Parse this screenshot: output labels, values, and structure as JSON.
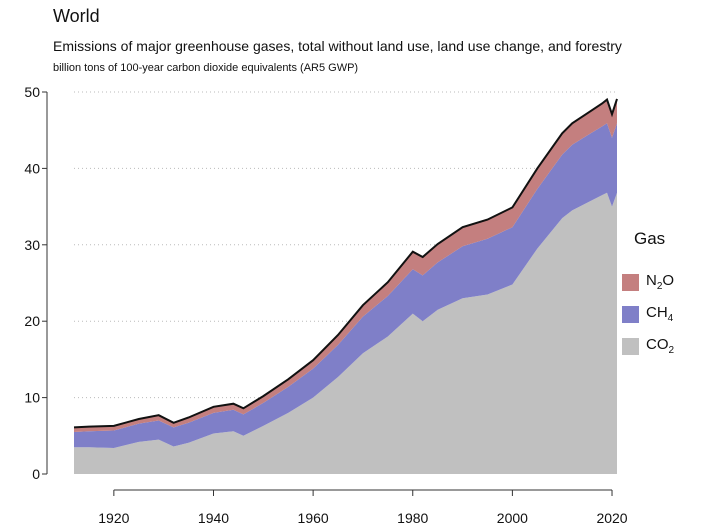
{
  "title": "World",
  "subtitle": "Emissions of major greenhouse gases, total without land use, land use change, and forestry",
  "units": "billion tons of 100-year carbon dioxide equivalents (AR5 GWP)",
  "legend": {
    "title": "Gas",
    "items": [
      {
        "label": "N",
        "sub": "2",
        "suffix": "O",
        "color": "#c47f7f"
      },
      {
        "label": "CH",
        "sub": "4",
        "suffix": "",
        "color": "#7f7fc8"
      },
      {
        "label": "CO",
        "sub": "2",
        "suffix": "",
        "color": "#c0c0c0"
      }
    ]
  },
  "chart_data": {
    "type": "area",
    "stacked": true,
    "xlim": [
      1912,
      2021
    ],
    "ylim": [
      0,
      50
    ],
    "x_ticks": [
      1920,
      1940,
      1960,
      1980,
      2000,
      2020
    ],
    "y_ticks": [
      0,
      10,
      20,
      30,
      40,
      50
    ],
    "grid": "horizontal dotted",
    "legend_position": "right",
    "x": [
      1912,
      1915,
      1920,
      1925,
      1929,
      1932,
      1935,
      1940,
      1944,
      1946,
      1950,
      1955,
      1960,
      1965,
      1970,
      1975,
      1980,
      1982,
      1985,
      1990,
      1995,
      2000,
      2005,
      2010,
      2012,
      2015,
      2018,
      2019,
      2020,
      2021
    ],
    "series": [
      {
        "name": "CO2",
        "color": "#c0c0c0",
        "values": [
          3.5,
          3.5,
          3.4,
          4.2,
          4.5,
          3.6,
          4.1,
          5.3,
          5.6,
          5.0,
          6.3,
          8.0,
          10.0,
          12.7,
          15.8,
          18.0,
          21.0,
          20.0,
          21.5,
          23.0,
          23.5,
          24.8,
          29.5,
          33.5,
          34.5,
          35.5,
          36.5,
          36.8,
          35.0,
          36.8
        ]
      },
      {
        "name": "CH4",
        "color": "#7f7fc8",
        "values": [
          2.0,
          2.1,
          2.3,
          2.4,
          2.5,
          2.5,
          2.6,
          2.7,
          2.8,
          2.8,
          3.0,
          3.4,
          3.8,
          4.2,
          4.8,
          5.3,
          5.8,
          6.0,
          6.2,
          6.8,
          7.3,
          7.5,
          7.8,
          8.3,
          8.6,
          8.8,
          9.0,
          9.1,
          9.0,
          9.1
        ]
      },
      {
        "name": "N2O",
        "color": "#c47f7f",
        "values": [
          0.6,
          0.6,
          0.6,
          0.6,
          0.7,
          0.6,
          0.7,
          0.8,
          0.8,
          0.8,
          0.9,
          1.0,
          1.1,
          1.3,
          1.5,
          1.8,
          2.3,
          2.4,
          2.4,
          2.5,
          2.5,
          2.6,
          2.7,
          2.8,
          2.8,
          2.9,
          3.0,
          3.1,
          3.1,
          3.2
        ]
      }
    ]
  }
}
